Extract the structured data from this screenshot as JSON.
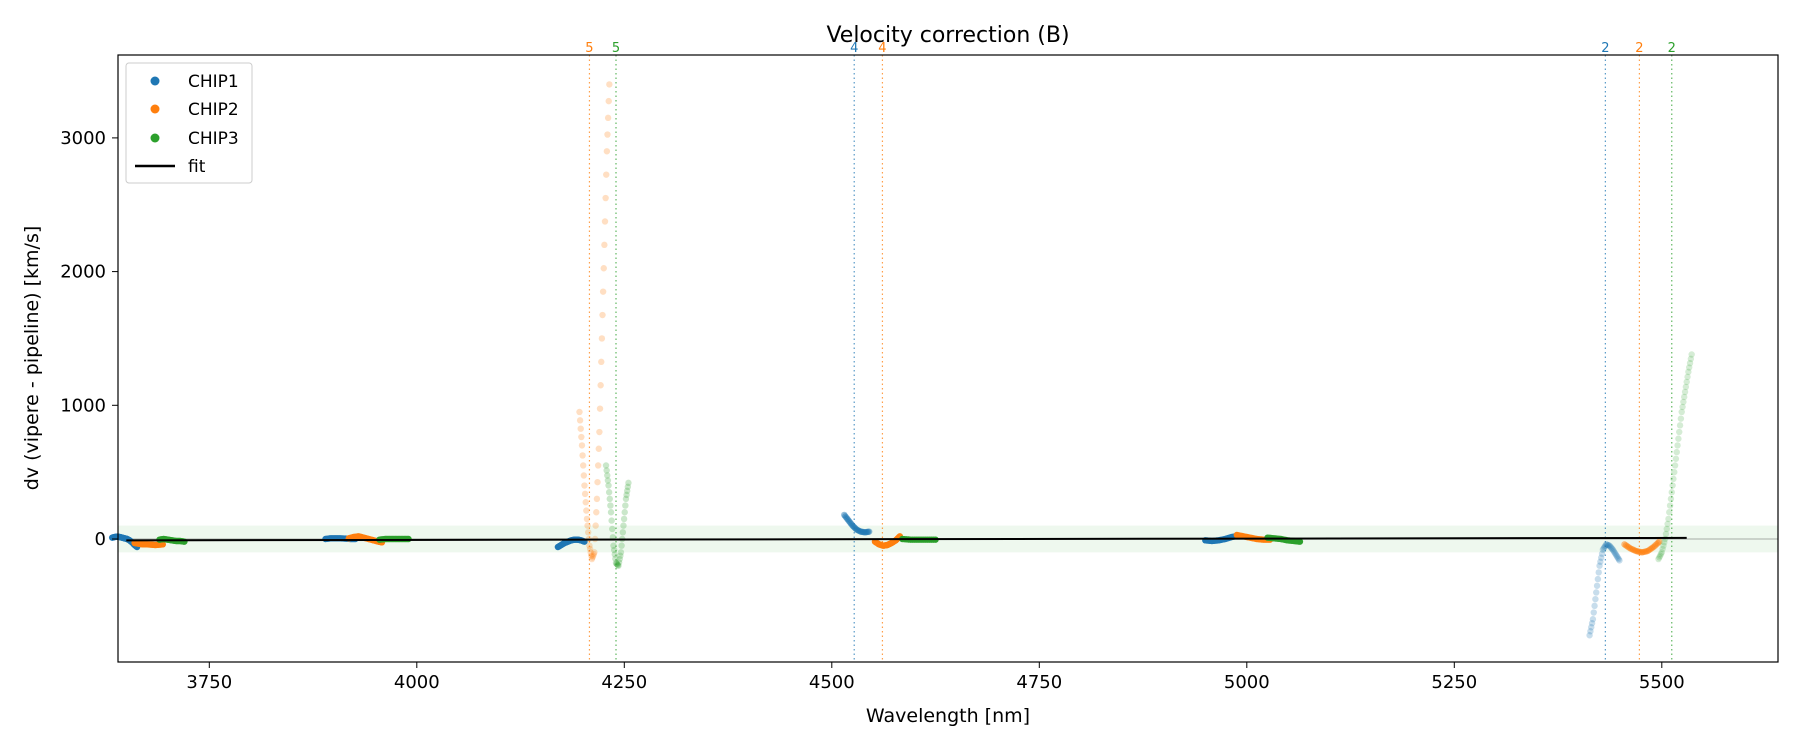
{
  "chart_data": {
    "type": "scatter",
    "title": "Velocity correction (B)",
    "xlabel": "Wavelength [nm]",
    "ylabel": "dv (vipere - pipeline) [km/s]",
    "xlim": [
      3640,
      5640
    ],
    "ylim": [
      -920,
      3620
    ],
    "xticks": [
      3750,
      4000,
      4250,
      4500,
      4750,
      5000,
      5250,
      5500
    ],
    "yticks": [
      0,
      1000,
      2000,
      3000
    ],
    "band": [
      -100,
      100
    ],
    "colors": {
      "CHIP1": "#1f77b4",
      "CHIP2": "#ff7f0e",
      "CHIP3": "#2ca02c",
      "fit": "#000000",
      "band": "#2ca02c"
    },
    "legend": {
      "placement": "top-left",
      "entries": [
        "CHIP1",
        "CHIP2",
        "CHIP3",
        "fit"
      ]
    },
    "fit": {
      "x": [
        3650,
        5530
      ],
      "y": [
        -10,
        8
      ]
    },
    "vlines": [
      {
        "x": 4208,
        "label": "5",
        "chip": "CHIP2"
      },
      {
        "x": 4240,
        "label": "5",
        "chip": "CHIP3"
      },
      {
        "x": 4527,
        "label": "4",
        "chip": "CHIP1"
      },
      {
        "x": 4561,
        "label": "4",
        "chip": "CHIP2"
      },
      {
        "x": 5432,
        "label": "2",
        "chip": "CHIP1"
      },
      {
        "x": 5473,
        "label": "2",
        "chip": "CHIP2"
      },
      {
        "x": 5512,
        "label": "2",
        "chip": "CHIP3"
      }
    ],
    "series": [
      {
        "name": "CHIP1",
        "order": 7,
        "alpha": 1.0,
        "x": [
          3633,
          3636,
          3639,
          3642,
          3645,
          3648,
          3651,
          3654,
          3657,
          3660,
          3663
        ],
        "y": [
          10,
          15,
          18,
          15,
          10,
          5,
          0,
          -10,
          -25,
          -45,
          -60
        ]
      },
      {
        "name": "CHIP2",
        "order": 7,
        "alpha": 1.0,
        "x": [
          3660,
          3665,
          3670,
          3675,
          3680,
          3685,
          3690,
          3694
        ],
        "y": [
          -30,
          -35,
          -40,
          -40,
          -42,
          -45,
          -42,
          -40
        ]
      },
      {
        "name": "CHIP3",
        "order": 7,
        "alpha": 1.0,
        "x": [
          3690,
          3695,
          3700,
          3705,
          3710,
          3715,
          3720
        ],
        "y": [
          -5,
          0,
          -5,
          -10,
          -15,
          -15,
          -20
        ]
      },
      {
        "name": "CHIP1",
        "order": 6,
        "alpha": 1.0,
        "x": [
          3890,
          3896,
          3902,
          3908,
          3914,
          3920,
          3926
        ],
        "y": [
          0,
          5,
          5,
          5,
          3,
          0,
          0
        ]
      },
      {
        "name": "CHIP2",
        "order": 6,
        "alpha": 1.0,
        "x": [
          3918,
          3924,
          3930,
          3936,
          3942,
          3948,
          3954,
          3958
        ],
        "y": [
          5,
          15,
          20,
          10,
          0,
          -10,
          -20,
          -25
        ]
      },
      {
        "name": "CHIP3",
        "order": 6,
        "alpha": 1.0,
        "x": [
          3955,
          3962,
          3969,
          3976,
          3983,
          3990
        ],
        "y": [
          -5,
          0,
          0,
          0,
          0,
          0
        ]
      },
      {
        "name": "CHIP1",
        "order": 5,
        "alpha": 1.0,
        "x": [
          4170,
          4174,
          4178,
          4182,
          4186,
          4190,
          4194,
          4198,
          4202
        ],
        "y": [
          -60,
          -45,
          -30,
          -20,
          -10,
          -5,
          -5,
          -10,
          -20
        ]
      },
      {
        "name": "CHIP2",
        "order": 5,
        "alpha": 0.25,
        "x": [
          4196,
          4199,
          4202,
          4205,
          4208,
          4211,
          4214,
          4217,
          4220,
          4223,
          4226,
          4229,
          4232
        ],
        "y": [
          950,
          700,
          400,
          150,
          -50,
          -150,
          -100,
          300,
          800,
          1500,
          2200,
          2900,
          3400
        ]
      },
      {
        "name": "CHIP3",
        "order": 5,
        "alpha": 0.25,
        "x": [
          4228,
          4231,
          4234,
          4237,
          4240,
          4243,
          4246,
          4249,
          4252,
          4255
        ],
        "y": [
          550,
          400,
          200,
          -50,
          -180,
          -200,
          -100,
          100,
          300,
          420
        ]
      },
      {
        "name": "CHIP1",
        "order": 4,
        "alpha": 0.5,
        "x": [
          4515,
          4520,
          4525,
          4530,
          4535,
          4540,
          4545
        ],
        "y": [
          180,
          140,
          100,
          70,
          55,
          50,
          55
        ]
      },
      {
        "name": "CHIP2",
        "order": 4,
        "alpha": 1.0,
        "x": [
          4552,
          4557,
          4562,
          4567,
          4572,
          4577,
          4582
        ],
        "y": [
          -20,
          -40,
          -50,
          -45,
          -30,
          -10,
          20
        ]
      },
      {
        "name": "CHIP3",
        "order": 4,
        "alpha": 1.0,
        "x": [
          4585,
          4595,
          4605,
          4615,
          4625
        ],
        "y": [
          0,
          -5,
          -5,
          -5,
          -5
        ]
      },
      {
        "name": "CHIP1",
        "order": 3,
        "alpha": 1.0,
        "x": [
          4950,
          4958,
          4966,
          4974,
          4982,
          4990
        ],
        "y": [
          -10,
          -15,
          -10,
          0,
          15,
          25
        ]
      },
      {
        "name": "CHIP2",
        "order": 3,
        "alpha": 1.0,
        "x": [
          4988,
          4996,
          5004,
          5012,
          5020,
          5028
        ],
        "y": [
          30,
          20,
          10,
          0,
          -5,
          -5
        ]
      },
      {
        "name": "CHIP3",
        "order": 3,
        "alpha": 1.0,
        "x": [
          5025,
          5033,
          5041,
          5049,
          5057,
          5064
        ],
        "y": [
          10,
          5,
          0,
          -10,
          -15,
          -20
        ]
      },
      {
        "name": "CHIP1",
        "order": 2,
        "alpha": 0.25,
        "x": [
          5413,
          5417,
          5421,
          5425,
          5429,
          5433,
          5437,
          5441,
          5445,
          5449
        ],
        "y": [
          -720,
          -600,
          -400,
          -200,
          -80,
          -40,
          -50,
          -80,
          -120,
          -160
        ]
      },
      {
        "name": "CHIP2",
        "order": 2,
        "alpha": 0.5,
        "x": [
          5455,
          5462,
          5469,
          5476,
          5483,
          5490,
          5497
        ],
        "y": [
          -40,
          -70,
          -90,
          -100,
          -90,
          -60,
          -20
        ]
      },
      {
        "name": "CHIP3",
        "order": 2,
        "alpha": 0.2,
        "x": [
          5496,
          5500,
          5504,
          5508,
          5512,
          5516,
          5520,
          5524,
          5528,
          5532,
          5536
        ],
        "y": [
          -150,
          -100,
          0,
          150,
          350,
          550,
          750,
          950,
          1100,
          1250,
          1380
        ]
      }
    ]
  }
}
